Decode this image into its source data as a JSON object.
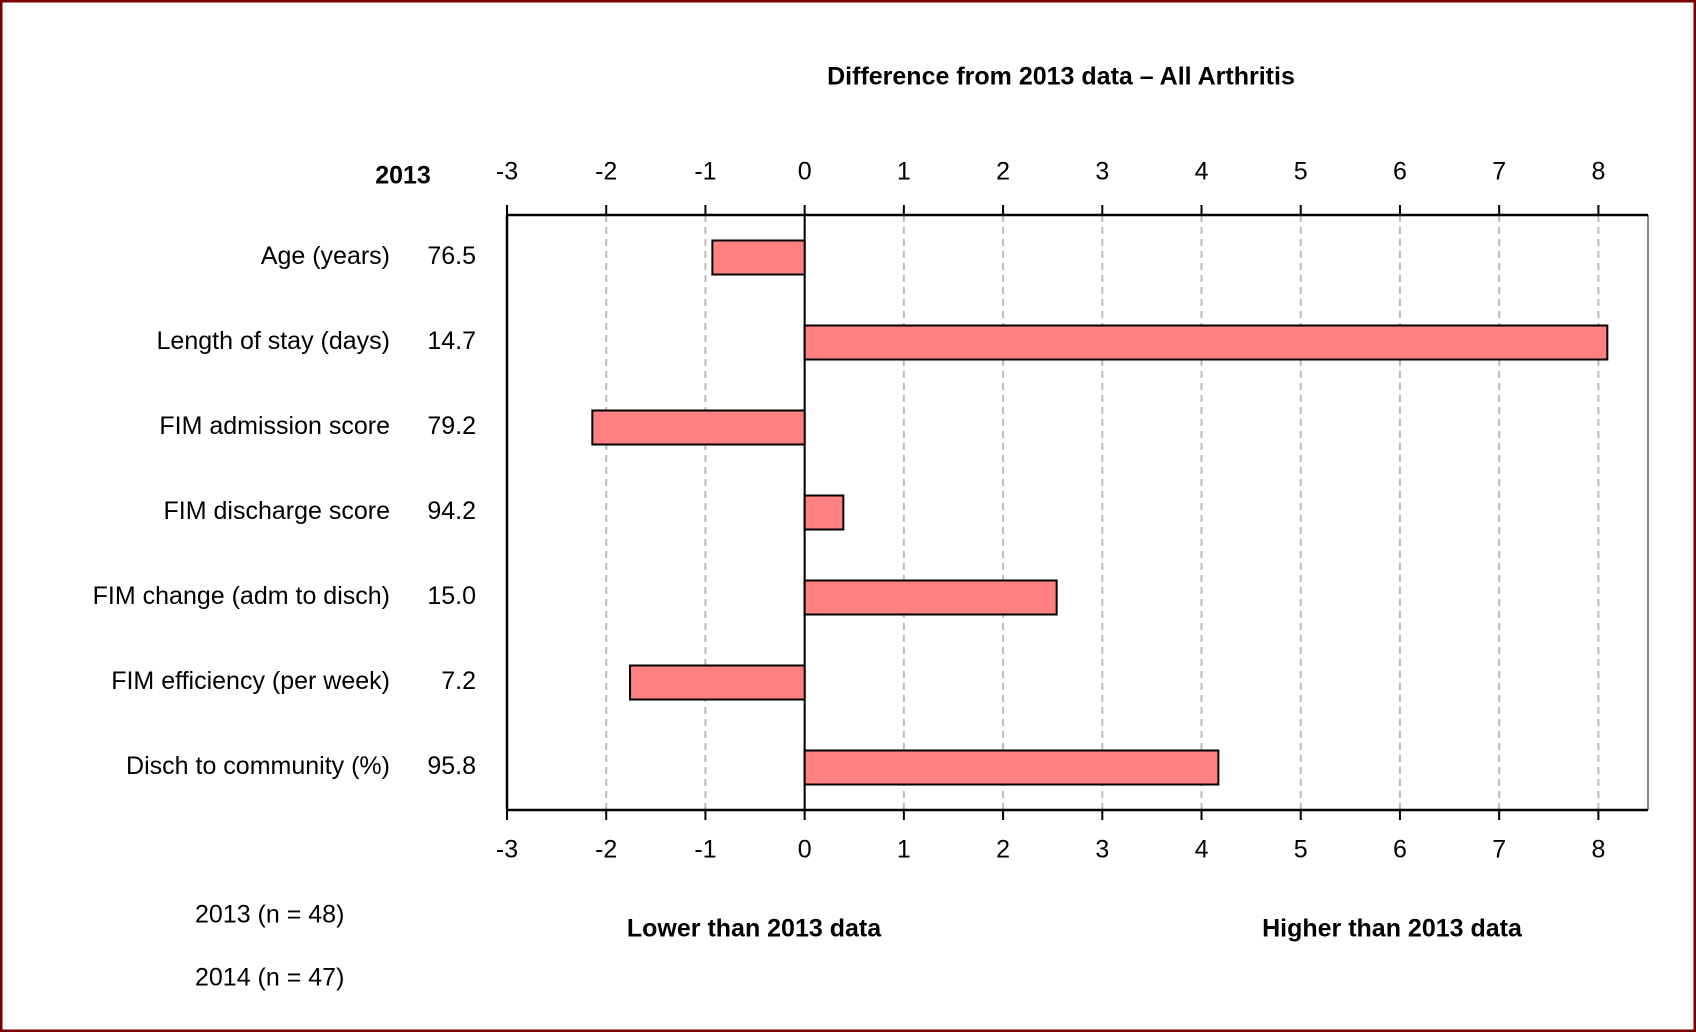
{
  "chart_data": {
    "type": "bar",
    "orientation": "horizontal",
    "title": "Difference from 2013 data – All Arthritis",
    "baseline_header": "2013",
    "categories": [
      "Age (years)",
      "Length of stay (days)",
      "FIM admission score",
      "FIM discharge score",
      "FIM change (adm to disch)",
      "FIM efficiency (per week)",
      "Disch to community (%)"
    ],
    "baseline_values": [
      "76.5",
      "14.7",
      "79.2",
      "94.2",
      "15.0",
      "7.2",
      "95.8"
    ],
    "values": [
      -0.93,
      8.09,
      -2.14,
      0.39,
      2.54,
      -1.76,
      4.17
    ],
    "color": "#ff8080",
    "xlim": [
      -3,
      8.5
    ],
    "xticks": [
      -3,
      -2,
      -1,
      0,
      1,
      2,
      3,
      4,
      5,
      6,
      7,
      8
    ],
    "grid": true,
    "notes": [
      "2013  (n = 48)",
      "2014  (n = 47)"
    ],
    "lower_label": "Lower than 2013 data",
    "higher_label": "Higher than 2013 data"
  }
}
